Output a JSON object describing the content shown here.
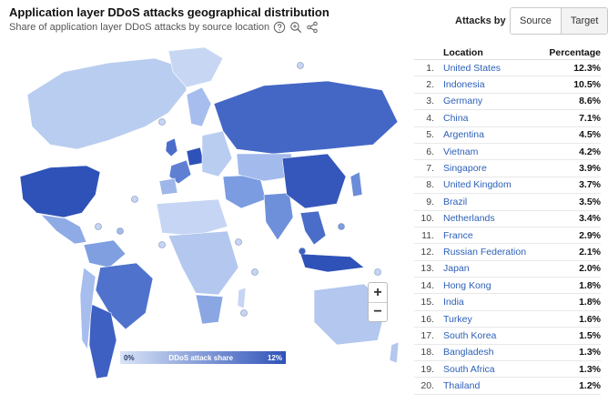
{
  "header": {
    "title": "Application layer DDoS attacks geographical distribution",
    "subtitle": "Share of application layer DDoS attacks by source location"
  },
  "toggle": {
    "label": "Attacks by",
    "options": [
      "Source",
      "Target"
    ],
    "selected": "Source"
  },
  "legend": {
    "min_label": "0%",
    "title": "DDoS attack share",
    "max_label": "12%",
    "color_low": "#d9e4f7",
    "color_high": "#2f52b8"
  },
  "zoom": {
    "in_label": "+",
    "out_label": "−"
  },
  "icons": {
    "help": "help-circle-icon",
    "zoom": "magnifier-icon",
    "share": "share-icon"
  },
  "table": {
    "columns": [
      "Location",
      "Percentage"
    ],
    "rows": [
      {
        "rank": "1.",
        "location": "United States",
        "pct": "12.3%"
      },
      {
        "rank": "2.",
        "location": "Indonesia",
        "pct": "10.5%"
      },
      {
        "rank": "3.",
        "location": "Germany",
        "pct": "8.6%"
      },
      {
        "rank": "4.",
        "location": "China",
        "pct": "7.1%"
      },
      {
        "rank": "5.",
        "location": "Argentina",
        "pct": "4.5%"
      },
      {
        "rank": "6.",
        "location": "Vietnam",
        "pct": "4.2%"
      },
      {
        "rank": "7.",
        "location": "Singapore",
        "pct": "3.9%"
      },
      {
        "rank": "8.",
        "location": "United Kingdom",
        "pct": "3.7%"
      },
      {
        "rank": "9.",
        "location": "Brazil",
        "pct": "3.5%"
      },
      {
        "rank": "10.",
        "location": "Netherlands",
        "pct": "3.4%"
      },
      {
        "rank": "11.",
        "location": "France",
        "pct": "2.9%"
      },
      {
        "rank": "12.",
        "location": "Russian Federation",
        "pct": "2.1%"
      },
      {
        "rank": "13.",
        "location": "Japan",
        "pct": "2.0%"
      },
      {
        "rank": "14.",
        "location": "Hong Kong",
        "pct": "1.8%"
      },
      {
        "rank": "15.",
        "location": "India",
        "pct": "1.8%"
      },
      {
        "rank": "16.",
        "location": "Turkey",
        "pct": "1.6%"
      },
      {
        "rank": "17.",
        "location": "South Korea",
        "pct": "1.5%"
      },
      {
        "rank": "18.",
        "location": "Bangladesh",
        "pct": "1.3%"
      },
      {
        "rank": "19.",
        "location": "South Africa",
        "pct": "1.3%"
      },
      {
        "rank": "20.",
        "location": "Thailand",
        "pct": "1.2%"
      }
    ]
  }
}
